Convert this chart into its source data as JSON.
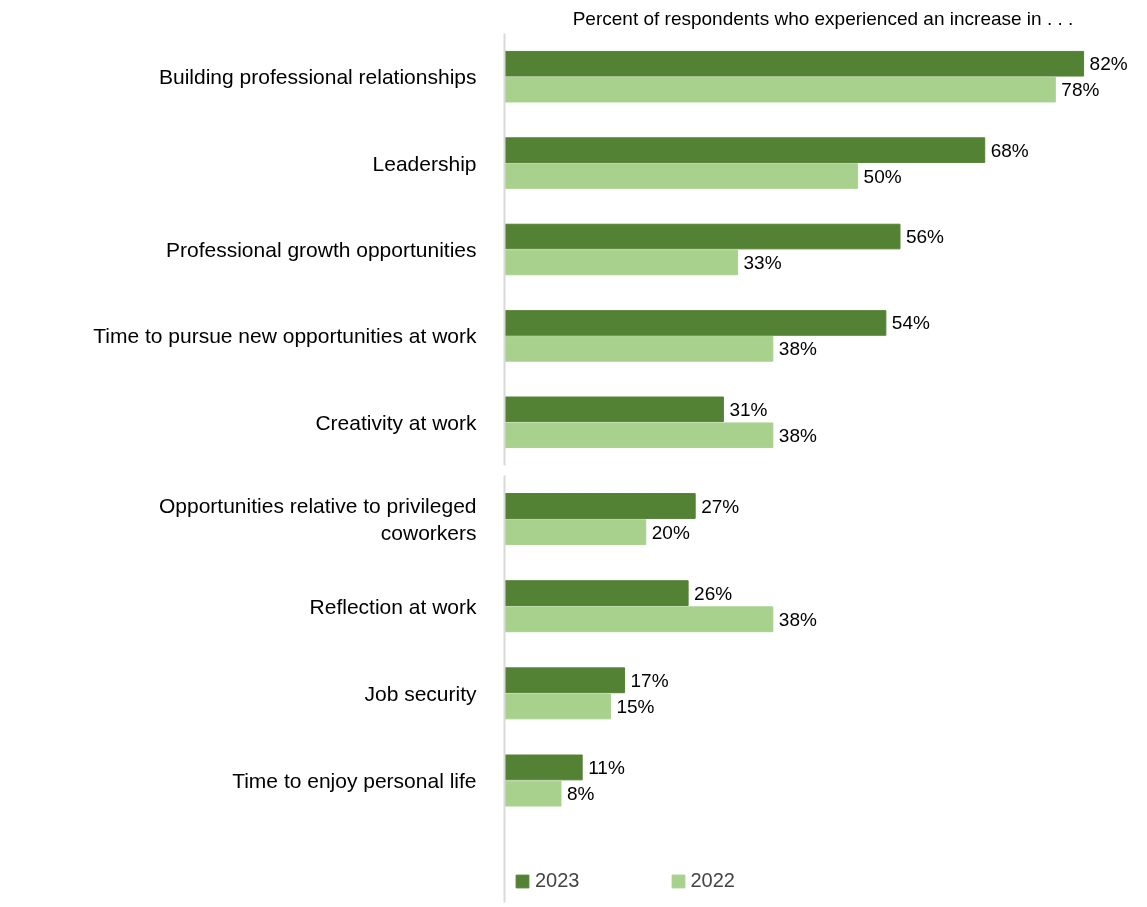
{
  "chart_data": [
    {
      "type": "bar",
      "orientation": "horizontal",
      "title": "Percent of respondents who experienced an increase in . . .",
      "categories": [
        "Building professional relationships",
        "Leadership",
        "Professional growth opportunities",
        "Time to pursue new opportunities at work",
        "Creativity at work"
      ],
      "series": [
        {
          "color": "#548235",
          "values": [
            82,
            68,
            56,
            54,
            31
          ],
          "value_labels": [
            "82%",
            "68%",
            "56%",
            "54%",
            "31%"
          ]
        },
        {
          "color": "#a9d18e",
          "values": [
            78,
            50,
            33,
            38,
            38
          ],
          "value_labels": [
            "78%",
            "50%",
            "33%",
            "38%",
            "38%"
          ]
        }
      ]
    },
    {
      "type": "bar",
      "orientation": "horizontal",
      "legend": "bottom",
      "categories": [
        "Opportunities relative to privileged coworkers",
        "Reflection at work",
        "Job security",
        "Time to enjoy personal life"
      ],
      "series": [
        {
          "name": "2023",
          "color": "#548235",
          "values": [
            27,
            26,
            17,
            11
          ],
          "value_labels": [
            "27%",
            "26%",
            "17%",
            "11%"
          ]
        },
        {
          "name": "2022",
          "color": "#a9d18e",
          "values": [
            20,
            38,
            15,
            8
          ],
          "value_labels": [
            "20%",
            "38%",
            "15%",
            "8%"
          ]
        }
      ]
    }
  ]
}
